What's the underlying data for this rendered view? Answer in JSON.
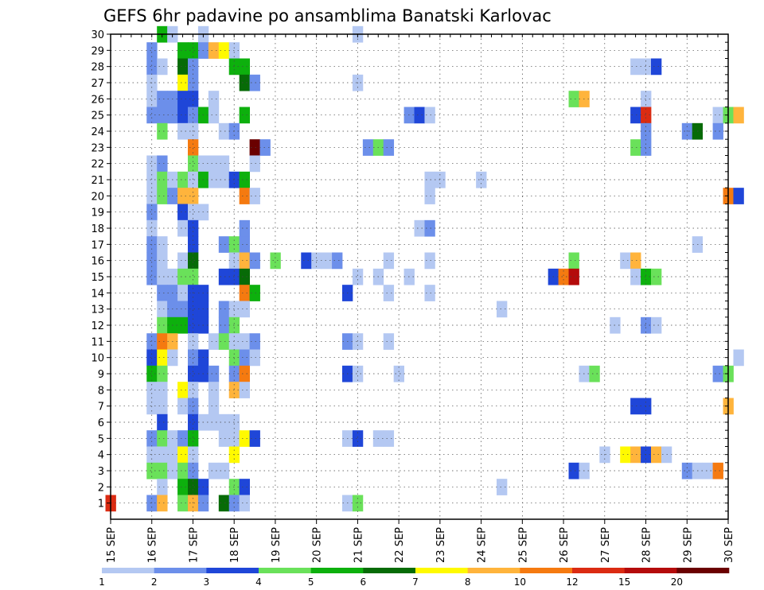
{
  "chart_data": {
    "type": "heatmap",
    "title": "GEFS 6hr padavine po ansamblima Banatski Karlovac",
    "xlabel": "",
    "ylabel": "",
    "x_tick_labels": [
      "15 SEP",
      "16 SEP",
      "17 SEP",
      "18 SEP",
      "19 SEP",
      "20 SEP",
      "21 SEP",
      "22 SEP",
      "23 SEP",
      "24 SEP",
      "25 SEP",
      "26 SEP",
      "27 SEP",
      "28 SEP",
      "29 SEP",
      "30 SEP"
    ],
    "x_range_days": [
      15,
      30
    ],
    "x_step_days": 0.25,
    "y_tick_labels": [
      "1",
      "2",
      "3",
      "4",
      "5",
      "6",
      "7",
      "8",
      "9",
      "10",
      "11",
      "12",
      "13",
      "14",
      "15",
      "16",
      "17",
      "18",
      "19",
      "20",
      "21",
      "22",
      "23",
      "24",
      "25",
      "26",
      "27",
      "28",
      "29",
      "30"
    ],
    "y_range": [
      0,
      30
    ],
    "grid": true,
    "legend": {
      "placement": "bottom",
      "boundaries": [
        "1",
        "2",
        "3",
        "4",
        "5",
        "6",
        "7",
        "8",
        "10",
        "12",
        "15",
        "20"
      ],
      "colors": [
        "#b4c8f2",
        "#6c8fea",
        "#1f46d8",
        "#6ae15a",
        "#0db00d",
        "#076b07",
        "#fffa00",
        "#ffb43c",
        "#f57a10",
        "#db2b12",
        "#b40b0b",
        "#6a0000"
      ]
    },
    "cells": [
      [
        16.25,
        30,
        4
      ],
      [
        16.5,
        30,
        0
      ],
      [
        17.25,
        30,
        0
      ],
      [
        21.0,
        30,
        0
      ],
      [
        16.0,
        29,
        1
      ],
      [
        16.75,
        29,
        4
      ],
      [
        17.0,
        29,
        4
      ],
      [
        17.25,
        29,
        1
      ],
      [
        17.5,
        29,
        7
      ],
      [
        17.75,
        29,
        6
      ],
      [
        18.0,
        29,
        0
      ],
      [
        16.0,
        28,
        1
      ],
      [
        16.25,
        28,
        0
      ],
      [
        16.75,
        28,
        5
      ],
      [
        17.0,
        28,
        1
      ],
      [
        18.0,
        28,
        4
      ],
      [
        18.25,
        28,
        4
      ],
      [
        27.75,
        28,
        0
      ],
      [
        28.0,
        28,
        0
      ],
      [
        28.25,
        28,
        2
      ],
      [
        16.0,
        27,
        0
      ],
      [
        16.75,
        27,
        6
      ],
      [
        17.0,
        27,
        1
      ],
      [
        18.25,
        27,
        5
      ],
      [
        18.5,
        27,
        1
      ],
      [
        21.0,
        27,
        0
      ],
      [
        16.0,
        26,
        0
      ],
      [
        16.25,
        26,
        1
      ],
      [
        16.5,
        26,
        1
      ],
      [
        16.75,
        26,
        2
      ],
      [
        17.0,
        26,
        2
      ],
      [
        17.5,
        26,
        0
      ],
      [
        26.25,
        26,
        3
      ],
      [
        26.5,
        26,
        7
      ],
      [
        28.0,
        26,
        0
      ],
      [
        16.0,
        25,
        1
      ],
      [
        16.25,
        25,
        1
      ],
      [
        16.5,
        25,
        1
      ],
      [
        16.75,
        25,
        2
      ],
      [
        17.0,
        25,
        1
      ],
      [
        17.25,
        25,
        4
      ],
      [
        17.5,
        25,
        0
      ],
      [
        18.25,
        25,
        4
      ],
      [
        22.25,
        25,
        1
      ],
      [
        22.5,
        25,
        2
      ],
      [
        22.75,
        25,
        0
      ],
      [
        27.75,
        25,
        2
      ],
      [
        28.0,
        25,
        9
      ],
      [
        29.75,
        25,
        0
      ],
      [
        30.0,
        25,
        3
      ],
      [
        30.25,
        25,
        7
      ],
      [
        16.25,
        24,
        3
      ],
      [
        16.75,
        24,
        0
      ],
      [
        17.0,
        24,
        0
      ],
      [
        17.75,
        24,
        0
      ],
      [
        18.0,
        24,
        1
      ],
      [
        29.75,
        24,
        1
      ],
      [
        29.0,
        24,
        1
      ],
      [
        29.25,
        24,
        5
      ],
      [
        28.0,
        24,
        1
      ],
      [
        17.0,
        23,
        8
      ],
      [
        18.5,
        23,
        11
      ],
      [
        18.75,
        23,
        1
      ],
      [
        21.25,
        23,
        1
      ],
      [
        21.5,
        23,
        3
      ],
      [
        21.75,
        23,
        1
      ],
      [
        27.75,
        23,
        3
      ],
      [
        28.0,
        23,
        1
      ],
      [
        16.0,
        22,
        0
      ],
      [
        16.25,
        22,
        1
      ],
      [
        17.0,
        22,
        3
      ],
      [
        17.25,
        22,
        0
      ],
      [
        17.5,
        22,
        0
      ],
      [
        17.75,
        22,
        0
      ],
      [
        18.5,
        22,
        0
      ],
      [
        16.0,
        21,
        0
      ],
      [
        16.25,
        21,
        3
      ],
      [
        16.5,
        21,
        0
      ],
      [
        16.75,
        21,
        3
      ],
      [
        17.0,
        21,
        0
      ],
      [
        17.25,
        21,
        4
      ],
      [
        17.5,
        21,
        0
      ],
      [
        17.75,
        21,
        0
      ],
      [
        18.0,
        21,
        2
      ],
      [
        18.25,
        21,
        4
      ],
      [
        22.75,
        21,
        0
      ],
      [
        23.0,
        21,
        0
      ],
      [
        24.0,
        21,
        0
      ],
      [
        16.0,
        20,
        0
      ],
      [
        16.25,
        20,
        3
      ],
      [
        16.5,
        20,
        1
      ],
      [
        16.75,
        20,
        7
      ],
      [
        17.0,
        20,
        7
      ],
      [
        18.25,
        20,
        8
      ],
      [
        18.5,
        20,
        0
      ],
      [
        22.75,
        20,
        0
      ],
      [
        30.0,
        20,
        8
      ],
      [
        30.25,
        20,
        2
      ],
      [
        16.0,
        19,
        1
      ],
      [
        16.75,
        19,
        2
      ],
      [
        17.0,
        19,
        0
      ],
      [
        17.25,
        19,
        0
      ],
      [
        16.0,
        18,
        0
      ],
      [
        16.75,
        18,
        0
      ],
      [
        17.0,
        18,
        2
      ],
      [
        18.25,
        18,
        1
      ],
      [
        22.5,
        18,
        0
      ],
      [
        22.75,
        18,
        1
      ],
      [
        16.0,
        17,
        1
      ],
      [
        16.25,
        17,
        0
      ],
      [
        17.0,
        17,
        2
      ],
      [
        17.75,
        17,
        1
      ],
      [
        18.0,
        17,
        3
      ],
      [
        18.25,
        17,
        1
      ],
      [
        29.25,
        17,
        0
      ],
      [
        16.0,
        16,
        1
      ],
      [
        16.25,
        16,
        0
      ],
      [
        16.75,
        16,
        0
      ],
      [
        17.0,
        16,
        5
      ],
      [
        18.0,
        16,
        0
      ],
      [
        18.25,
        16,
        7
      ],
      [
        18.5,
        16,
        1
      ],
      [
        19.0,
        16,
        3
      ],
      [
        19.75,
        16,
        2
      ],
      [
        20.0,
        16,
        0
      ],
      [
        20.25,
        16,
        0
      ],
      [
        20.5,
        16,
        1
      ],
      [
        21.75,
        16,
        0
      ],
      [
        22.75,
        16,
        0
      ],
      [
        26.25,
        16,
        3
      ],
      [
        27.5,
        16,
        0
      ],
      [
        27.75,
        16,
        7
      ],
      [
        16.0,
        15,
        1
      ],
      [
        16.25,
        15,
        0
      ],
      [
        16.5,
        15,
        0
      ],
      [
        16.75,
        15,
        3
      ],
      [
        17.0,
        15,
        3
      ],
      [
        17.75,
        15,
        2
      ],
      [
        18.0,
        15,
        2
      ],
      [
        18.25,
        15,
        5
      ],
      [
        21.0,
        15,
        0
      ],
      [
        21.5,
        15,
        0
      ],
      [
        22.25,
        15,
        0
      ],
      [
        25.75,
        15,
        2
      ],
      [
        26.0,
        15,
        8
      ],
      [
        26.25,
        15,
        10
      ],
      [
        27.75,
        15,
        0
      ],
      [
        28.0,
        15,
        4
      ],
      [
        28.25,
        15,
        3
      ],
      [
        16.25,
        14,
        1
      ],
      [
        16.5,
        14,
        1
      ],
      [
        16.75,
        14,
        0
      ],
      [
        17.0,
        14,
        2
      ],
      [
        17.25,
        14,
        2
      ],
      [
        18.25,
        14,
        8
      ],
      [
        18.5,
        14,
        4
      ],
      [
        20.75,
        14,
        2
      ],
      [
        21.75,
        14,
        0
      ],
      [
        22.75,
        14,
        0
      ],
      [
        16.25,
        13,
        0
      ],
      [
        16.5,
        13,
        1
      ],
      [
        16.75,
        13,
        1
      ],
      [
        17.0,
        13,
        2
      ],
      [
        17.25,
        13,
        2
      ],
      [
        17.75,
        13,
        1
      ],
      [
        18.0,
        13,
        0
      ],
      [
        18.25,
        13,
        0
      ],
      [
        24.5,
        13,
        0
      ],
      [
        16.25,
        12,
        3
      ],
      [
        16.5,
        12,
        4
      ],
      [
        16.75,
        12,
        4
      ],
      [
        17.0,
        12,
        2
      ],
      [
        17.25,
        12,
        2
      ],
      [
        17.75,
        12,
        1
      ],
      [
        18.0,
        12,
        3
      ],
      [
        27.25,
        12,
        0
      ],
      [
        28.0,
        12,
        1
      ],
      [
        28.25,
        12,
        0
      ],
      [
        16.0,
        11,
        1
      ],
      [
        16.25,
        11,
        8
      ],
      [
        16.5,
        11,
        7
      ],
      [
        17.0,
        11,
        0
      ],
      [
        17.5,
        11,
        0
      ],
      [
        17.75,
        11,
        3
      ],
      [
        18.0,
        11,
        0
      ],
      [
        18.25,
        11,
        0
      ],
      [
        18.5,
        11,
        1
      ],
      [
        20.75,
        11,
        1
      ],
      [
        21.0,
        11,
        0
      ],
      [
        21.75,
        11,
        0
      ],
      [
        16.0,
        10,
        2
      ],
      [
        16.25,
        10,
        6
      ],
      [
        16.5,
        10,
        0
      ],
      [
        17.0,
        10,
        1
      ],
      [
        17.25,
        10,
        2
      ],
      [
        18.0,
        10,
        3
      ],
      [
        18.25,
        10,
        1
      ],
      [
        18.5,
        10,
        0
      ],
      [
        30.25,
        10,
        0
      ],
      [
        16.0,
        9,
        4
      ],
      [
        16.25,
        9,
        3
      ],
      [
        17.0,
        9,
        2
      ],
      [
        17.25,
        9,
        2
      ],
      [
        17.5,
        9,
        1
      ],
      [
        18.0,
        9,
        1
      ],
      [
        18.25,
        9,
        8
      ],
      [
        20.75,
        9,
        2
      ],
      [
        21.0,
        9,
        0
      ],
      [
        22.0,
        9,
        0
      ],
      [
        26.5,
        9,
        0
      ],
      [
        26.75,
        9,
        3
      ],
      [
        29.75,
        9,
        1
      ],
      [
        30.0,
        9,
        3
      ],
      [
        16.0,
        8,
        0
      ],
      [
        16.25,
        8,
        0
      ],
      [
        16.75,
        8,
        6
      ],
      [
        17.0,
        8,
        0
      ],
      [
        17.5,
        8,
        0
      ],
      [
        18.0,
        8,
        7
      ],
      [
        18.25,
        8,
        0
      ],
      [
        16.0,
        7,
        0
      ],
      [
        16.25,
        7,
        0
      ],
      [
        16.75,
        7,
        0
      ],
      [
        17.0,
        7,
        1
      ],
      [
        17.5,
        7,
        0
      ],
      [
        27.75,
        7,
        2
      ],
      [
        28.0,
        7,
        2
      ],
      [
        30.0,
        7,
        7
      ],
      [
        16.25,
        6,
        2
      ],
      [
        17.0,
        6,
        2
      ],
      [
        17.25,
        6,
        0
      ],
      [
        17.5,
        6,
        0
      ],
      [
        17.75,
        6,
        0
      ],
      [
        18.0,
        6,
        0
      ],
      [
        16.0,
        5,
        1
      ],
      [
        16.25,
        5,
        3
      ],
      [
        16.5,
        5,
        0
      ],
      [
        16.75,
        5,
        1
      ],
      [
        17.0,
        5,
        4
      ],
      [
        17.75,
        5,
        0
      ],
      [
        18.0,
        5,
        0
      ],
      [
        18.25,
        5,
        6
      ],
      [
        18.5,
        5,
        2
      ],
      [
        20.75,
        5,
        0
      ],
      [
        21.0,
        5,
        2
      ],
      [
        21.5,
        5,
        0
      ],
      [
        21.75,
        5,
        0
      ],
      [
        16.0,
        4,
        0
      ],
      [
        16.25,
        4,
        0
      ],
      [
        16.5,
        4,
        0
      ],
      [
        16.75,
        4,
        6
      ],
      [
        17.0,
        4,
        0
      ],
      [
        18.0,
        4,
        6
      ],
      [
        27.0,
        4,
        0
      ],
      [
        27.5,
        4,
        6
      ],
      [
        27.75,
        4,
        7
      ],
      [
        28.0,
        4,
        2
      ],
      [
        28.25,
        4,
        7
      ],
      [
        28.5,
        4,
        0
      ],
      [
        16.0,
        3,
        3
      ],
      [
        16.25,
        3,
        3
      ],
      [
        16.5,
        3,
        0
      ],
      [
        16.75,
        3,
        3
      ],
      [
        17.0,
        3,
        1
      ],
      [
        17.5,
        3,
        0
      ],
      [
        17.75,
        3,
        0
      ],
      [
        26.25,
        3,
        2
      ],
      [
        26.5,
        3,
        0
      ],
      [
        29.0,
        3,
        1
      ],
      [
        29.25,
        3,
        0
      ],
      [
        29.5,
        3,
        0
      ],
      [
        29.75,
        3,
        8
      ],
      [
        16.25,
        2,
        0
      ],
      [
        16.75,
        2,
        4
      ],
      [
        17.0,
        2,
        5
      ],
      [
        17.25,
        2,
        2
      ],
      [
        18.0,
        2,
        3
      ],
      [
        18.25,
        2,
        2
      ],
      [
        24.5,
        2,
        0
      ],
      [
        16.0,
        1,
        1
      ],
      [
        16.25,
        1,
        7
      ],
      [
        16.75,
        1,
        3
      ],
      [
        17.0,
        1,
        7
      ],
      [
        17.25,
        1,
        1
      ],
      [
        17.75,
        1,
        5
      ],
      [
        18.0,
        1,
        1
      ],
      [
        18.25,
        1,
        0
      ],
      [
        20.75,
        1,
        0
      ],
      [
        21.0,
        1,
        3
      ],
      [
        15.0,
        1,
        9
      ]
    ]
  }
}
